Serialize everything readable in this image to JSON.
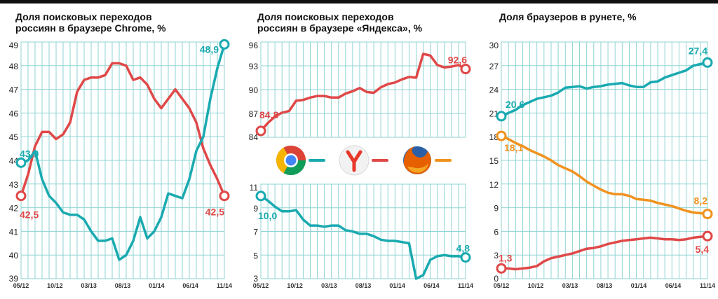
{
  "chart_data": [
    {
      "id": "chrome",
      "type": "line",
      "title_lines": [
        "Доля поисковых переходов",
        "россиян в браузере Chrome, %"
      ],
      "x_ticks": [
        "05/12",
        "10/12",
        "03/13",
        "08/13",
        "01/14",
        "06/14",
        "11/14"
      ],
      "y_ticks": [
        "39",
        "40",
        "41",
        "42",
        "43",
        "44",
        "45",
        "46",
        "47",
        "48",
        "49"
      ],
      "ylim": [
        39,
        49
      ],
      "grid": true,
      "series": [
        {
          "color": "#e04848",
          "start_label": "42,5",
          "end_label": "42,5",
          "values": [
            42.5,
            43.4,
            44.6,
            45.2,
            45.2,
            44.9,
            45.1,
            45.6,
            46.9,
            47.4,
            47.5,
            47.5,
            47.6,
            48.1,
            48.1,
            48.0,
            47.4,
            47.5,
            47.2,
            46.6,
            46.2,
            46.6,
            47.0,
            46.6,
            46.2,
            45.6,
            44.5,
            43.8,
            43.2,
            42.5
          ]
        },
        {
          "color": "#19aab0",
          "start_label": "43,9",
          "end_label": "48,9",
          "values": [
            43.9,
            44.0,
            44.4,
            43.2,
            42.5,
            42.2,
            41.8,
            41.7,
            41.7,
            41.5,
            41.0,
            40.6,
            40.6,
            40.7,
            39.8,
            40.0,
            40.6,
            41.6,
            40.7,
            41.0,
            41.6,
            42.6,
            42.5,
            42.4,
            43.2,
            44.4,
            45.0,
            46.6,
            47.9,
            48.9
          ]
        }
      ]
    },
    {
      "id": "yandex",
      "type": "line",
      "title_lines": [
        "Доля поисковых переходов",
        "россиян в браузере «Яндекса», %"
      ],
      "x_ticks": [
        "05/12",
        "10/12",
        "03/13",
        "08/13",
        "01/14",
        "06/14",
        "11/14"
      ],
      "y_ticks_top": [
        "84",
        "87",
        "90",
        "93",
        "96"
      ],
      "ylim_top": [
        84,
        96
      ],
      "y_ticks_bottom": [
        "3",
        "5",
        "7",
        "9",
        "11"
      ],
      "ylim_bottom": [
        3,
        11
      ],
      "grid": true,
      "series": [
        {
          "color": "#e04848",
          "start_label": "84,8",
          "end_label": "92,6",
          "values": [
            84.8,
            85.8,
            86.6,
            87.1,
            87.3,
            88.6,
            88.7,
            89.0,
            89.2,
            89.2,
            89.0,
            89.0,
            89.5,
            89.8,
            90.2,
            89.7,
            89.6,
            90.3,
            90.7,
            90.9,
            91.3,
            91.6,
            91.5,
            94.5,
            94.3,
            93.1,
            92.8,
            92.9,
            93.1,
            92.6
          ]
        },
        {
          "color": "#19aab0",
          "start_label": "10,0",
          "end_label": "4,8",
          "values": [
            10.0,
            9.6,
            9.1,
            8.7,
            8.7,
            8.8,
            8.0,
            7.5,
            7.5,
            7.4,
            7.5,
            7.5,
            7.1,
            7.0,
            6.8,
            6.8,
            6.6,
            6.3,
            6.2,
            6.2,
            6.1,
            6.0,
            3.0,
            3.3,
            4.6,
            4.9,
            5.0,
            4.9,
            4.9,
            4.8
          ]
        }
      ],
      "legend": [
        {
          "icon": "chrome-icon",
          "color": "#19aab0"
        },
        {
          "icon": "yandex-icon",
          "color": "#e04848"
        },
        {
          "icon": "firefox-icon",
          "color": "#f0921e"
        }
      ]
    },
    {
      "id": "runet",
      "type": "line",
      "title_lines": [
        "Доля браузеров в рунете, %"
      ],
      "x_ticks": [
        "05/12",
        "10/12",
        "03/13",
        "08/13",
        "01/14",
        "06/14",
        "11/14"
      ],
      "y_ticks": [
        "0",
        "3",
        "6",
        "9",
        "12",
        "15",
        "18",
        "21",
        "24",
        "27",
        "30"
      ],
      "ylim": [
        0,
        30
      ],
      "grid": true,
      "series": [
        {
          "color": "#19aab0",
          "start_label": "20,6",
          "end_label": "27,4",
          "values": [
            20.6,
            21.0,
            21.4,
            22.0,
            22.4,
            22.8,
            23.0,
            23.2,
            23.6,
            24.2,
            24.3,
            24.4,
            24.1,
            24.3,
            24.4,
            24.6,
            24.7,
            24.8,
            24.5,
            24.3,
            24.3,
            24.9,
            25.0,
            25.5,
            25.8,
            26.1,
            26.4,
            27.0,
            27.2,
            27.4
          ]
        },
        {
          "color": "#f0921e",
          "start_label": "18,1",
          "end_label": "8,2",
          "values": [
            18.1,
            17.7,
            17.2,
            16.8,
            16.3,
            15.9,
            15.5,
            15.0,
            14.4,
            14.0,
            13.6,
            13.0,
            12.3,
            11.8,
            11.3,
            10.9,
            10.7,
            10.7,
            10.5,
            10.1,
            10.0,
            9.9,
            9.6,
            9.4,
            9.2,
            8.9,
            8.6,
            8.4,
            8.3,
            8.2
          ]
        },
        {
          "color": "#e04848",
          "start_label": "1,3",
          "end_label": "5,4",
          "values": [
            1.3,
            1.3,
            1.2,
            1.3,
            1.4,
            1.6,
            2.2,
            2.6,
            2.8,
            3.0,
            3.2,
            3.5,
            3.8,
            3.9,
            4.1,
            4.4,
            4.6,
            4.8,
            4.9,
            5.0,
            5.1,
            5.2,
            5.1,
            5.0,
            5.0,
            4.9,
            5.0,
            5.2,
            5.3,
            5.4
          ]
        }
      ]
    }
  ]
}
